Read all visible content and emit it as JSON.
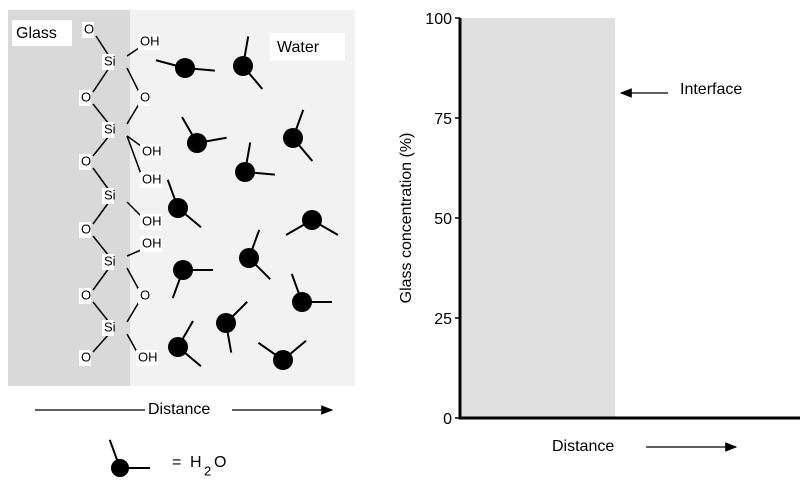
{
  "left_panel": {
    "glass_label": "Glass",
    "water_label": "Water",
    "si_label": "Si",
    "o_label": "O",
    "oh_label": "OH",
    "distance_label": "Distance",
    "legend": {
      "equals": "=",
      "h": "H",
      "sub": "2",
      "o": "O"
    }
  },
  "plot": {
    "y_label": "Glass concentration (%)",
    "ylim": [
      0,
      100
    ],
    "yticks": [
      0,
      25,
      50,
      75,
      100
    ],
    "interface_label": "Interface",
    "x_label": "Distance"
  }
}
